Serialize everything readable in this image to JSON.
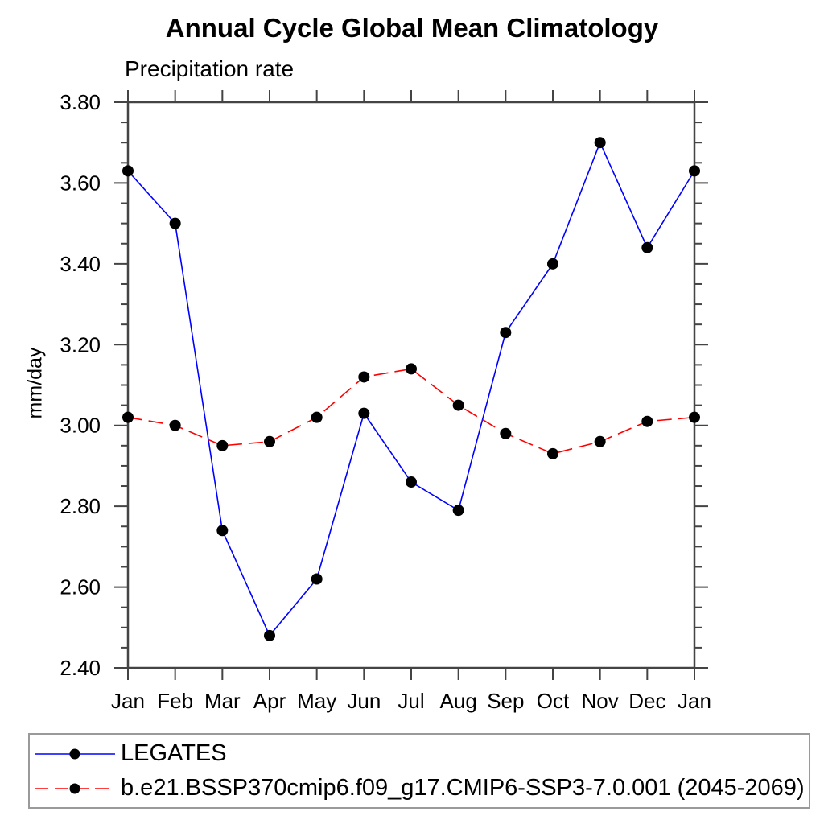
{
  "chart_data": {
    "type": "line",
    "title": "Annual Cycle Global Mean Climatology",
    "subtitle": "Precipitation rate",
    "ylabel": "mm/day",
    "categories": [
      "Jan",
      "Feb",
      "Mar",
      "Apr",
      "May",
      "Jun",
      "Jul",
      "Aug",
      "Sep",
      "Oct",
      "Nov",
      "Dec",
      "Jan"
    ],
    "series": [
      {
        "name": "LEGATES",
        "color": "#0000ff",
        "line_style": "solid",
        "marker": "filled-circle",
        "marker_color": "#000000",
        "values": [
          3.63,
          3.5,
          2.74,
          2.48,
          2.62,
          3.03,
          2.86,
          2.79,
          3.23,
          3.4,
          3.7,
          3.44,
          3.63
        ]
      },
      {
        "name": "b.e21.BSSP370cmip6.f09_g17.CMIP6-SSP3-7.0.001 (2045-2069)",
        "color": "#ff0000",
        "line_style": "dashed",
        "marker": "filled-circle",
        "marker_color": "#000000",
        "values": [
          3.02,
          3.0,
          2.95,
          2.96,
          3.02,
          3.12,
          3.14,
          3.05,
          2.98,
          2.93,
          2.96,
          3.01,
          3.02
        ]
      }
    ],
    "ylim": [
      2.4,
      3.8
    ],
    "yticks": [
      2.4,
      2.6,
      2.8,
      3.0,
      3.2,
      3.4,
      3.6,
      3.8
    ],
    "ytick_labels": [
      "2.40",
      "2.60",
      "2.80",
      "3.00",
      "3.20",
      "3.40",
      "3.60",
      "3.80"
    ],
    "yminor_step": 0.05,
    "grid": false,
    "tick_direction": "outward",
    "axis_color": "#444444",
    "legend_position": "bottom-left"
  }
}
